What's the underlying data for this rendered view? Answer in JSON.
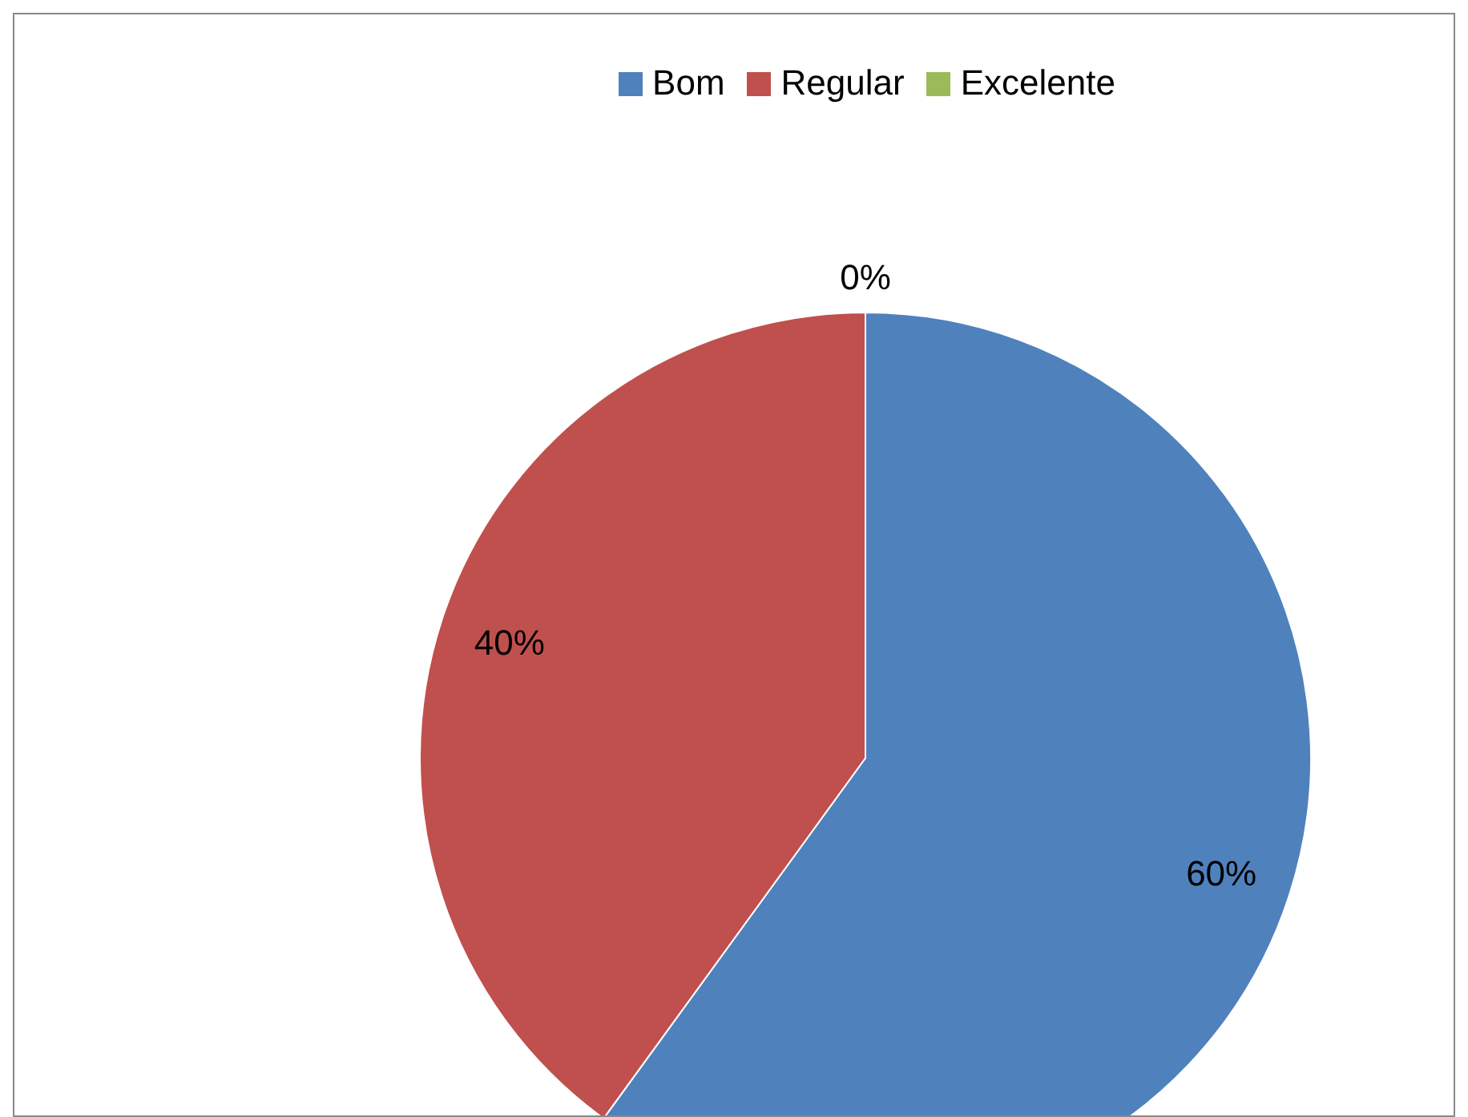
{
  "chart_data": {
    "type": "pie",
    "categories": [
      "Bom",
      "Regular",
      "Excelente"
    ],
    "values": [
      60,
      40,
      0
    ],
    "value_labels": [
      "60%",
      "40%",
      "0%"
    ],
    "colors": [
      "#4f81bd",
      "#c0504d",
      "#9bbb59"
    ],
    "legend": "top"
  }
}
